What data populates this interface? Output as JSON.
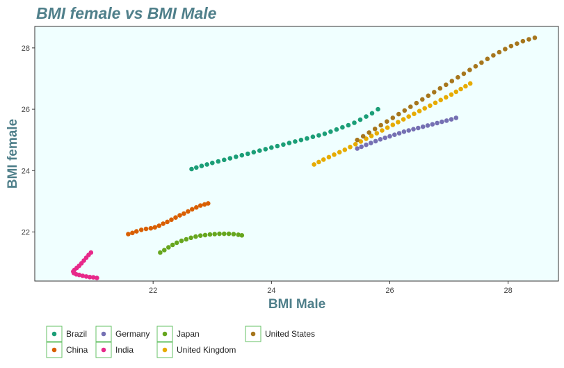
{
  "chart_data": {
    "type": "scatter",
    "title": "BMI female vs BMI Male",
    "xlabel": "BMI Male",
    "ylabel": "BMI female",
    "xlim": [
      20.0,
      28.85
    ],
    "ylim": [
      20.4,
      28.7
    ],
    "x_ticks": [
      22,
      24,
      26,
      28
    ],
    "y_ticks": [
      22,
      24,
      26,
      28
    ],
    "grid": false,
    "panel_background": "#f0ffff",
    "legend_position": "bottom-left",
    "series": [
      {
        "name": "Brazil",
        "color": "#1b9e77",
        "x": [
          22.65,
          22.73,
          22.82,
          22.91,
          23.0,
          23.1,
          23.2,
          23.3,
          23.4,
          23.5,
          23.6,
          23.7,
          23.8,
          23.9,
          24.0,
          24.1,
          24.2,
          24.3,
          24.4,
          24.5,
          24.6,
          24.7,
          24.8,
          24.9,
          25.0,
          25.1,
          25.2,
          25.3,
          25.4,
          25.5,
          25.6,
          25.7,
          25.8
        ],
        "y": [
          24.05,
          24.1,
          24.15,
          24.2,
          24.25,
          24.3,
          24.35,
          24.4,
          24.45,
          24.5,
          24.55,
          24.6,
          24.65,
          24.7,
          24.75,
          24.8,
          24.85,
          24.9,
          24.95,
          25.0,
          25.05,
          25.1,
          25.15,
          25.2,
          25.27,
          25.34,
          25.41,
          25.48,
          25.56,
          25.66,
          25.76,
          25.87,
          26.0
        ]
      },
      {
        "name": "China",
        "color": "#d95f02",
        "x": [
          21.58,
          21.65,
          21.72,
          21.8,
          21.88,
          21.96,
          22.03,
          22.1,
          22.17,
          22.24,
          22.31,
          22.38,
          22.45,
          22.52,
          22.59,
          22.66,
          22.73,
          22.8,
          22.87,
          22.93
        ],
        "y": [
          21.93,
          21.97,
          22.02,
          22.07,
          22.1,
          22.12,
          22.15,
          22.2,
          22.27,
          22.33,
          22.4,
          22.47,
          22.54,
          22.6,
          22.67,
          22.74,
          22.8,
          22.86,
          22.9,
          22.93
        ]
      },
      {
        "name": "Germany",
        "color": "#7570b3",
        "x": [
          25.45,
          25.52,
          25.6,
          25.68,
          25.76,
          25.84,
          25.92,
          26.0,
          26.08,
          26.16,
          26.24,
          26.32,
          26.4,
          26.48,
          26.56,
          26.64,
          26.72,
          26.8,
          26.88,
          26.96,
          27.04,
          27.12
        ],
        "y": [
          24.72,
          24.78,
          24.84,
          24.9,
          24.96,
          25.02,
          25.07,
          25.12,
          25.17,
          25.22,
          25.27,
          25.31,
          25.35,
          25.39,
          25.43,
          25.47,
          25.51,
          25.55,
          25.59,
          25.63,
          25.67,
          25.72
        ]
      },
      {
        "name": "India",
        "color": "#e7298a",
        "x": [
          20.95,
          20.91,
          20.87,
          20.83,
          20.79,
          20.75,
          20.71,
          20.67,
          20.65,
          20.66,
          20.7,
          20.75,
          20.81,
          20.87,
          20.93,
          20.99,
          21.05
        ],
        "y": [
          21.33,
          21.25,
          21.16,
          21.07,
          20.98,
          20.9,
          20.83,
          20.76,
          20.71,
          20.66,
          20.62,
          20.6,
          20.57,
          20.55,
          20.53,
          20.52,
          20.5
        ]
      },
      {
        "name": "Japan",
        "color": "#66a61e",
        "x": [
          22.12,
          22.19,
          22.26,
          22.33,
          22.4,
          22.48,
          22.56,
          22.64,
          22.72,
          22.8,
          22.88,
          22.96,
          23.04,
          23.12,
          23.2,
          23.28,
          23.36,
          23.44,
          23.5
        ],
        "y": [
          21.33,
          21.41,
          21.5,
          21.58,
          21.65,
          21.71,
          21.76,
          21.81,
          21.85,
          21.88,
          21.9,
          21.92,
          21.93,
          21.94,
          21.94,
          21.94,
          21.93,
          21.91,
          21.89
        ]
      },
      {
        "name": "United Kingdom",
        "color": "#e6ab02",
        "x": [
          24.72,
          24.8,
          24.88,
          24.97,
          25.06,
          25.15,
          25.24,
          25.33,
          25.42,
          25.51,
          25.6,
          25.69,
          25.78,
          25.87,
          25.96,
          26.05,
          26.14,
          26.23,
          26.32,
          26.41,
          26.5,
          26.59,
          26.68,
          26.77,
          26.86,
          26.95,
          27.04,
          27.12,
          27.2,
          27.28,
          27.36
        ],
        "y": [
          24.2,
          24.28,
          24.36,
          24.44,
          24.52,
          24.6,
          24.68,
          24.77,
          24.86,
          24.95,
          25.04,
          25.13,
          25.22,
          25.31,
          25.4,
          25.49,
          25.58,
          25.67,
          25.76,
          25.85,
          25.94,
          26.03,
          26.12,
          26.21,
          26.3,
          26.39,
          26.48,
          26.57,
          26.66,
          26.75,
          26.84
        ]
      },
      {
        "name": "United States",
        "color": "#a6761d",
        "x": [
          25.45,
          25.55,
          25.65,
          25.75,
          25.85,
          25.95,
          26.05,
          26.15,
          26.25,
          26.35,
          26.45,
          26.55,
          26.65,
          26.75,
          26.85,
          26.95,
          27.05,
          27.15,
          27.25,
          27.35,
          27.45,
          27.55,
          27.65,
          27.75,
          27.85,
          27.95,
          28.05,
          28.15,
          28.25,
          28.35,
          28.45
        ],
        "y": [
          25.0,
          25.12,
          25.24,
          25.36,
          25.48,
          25.6,
          25.72,
          25.84,
          25.96,
          26.08,
          26.2,
          26.32,
          26.44,
          26.56,
          26.68,
          26.8,
          26.92,
          27.04,
          27.16,
          27.28,
          27.4,
          27.52,
          27.64,
          27.76,
          27.86,
          27.96,
          28.06,
          28.14,
          28.22,
          28.28,
          28.33
        ]
      }
    ]
  }
}
